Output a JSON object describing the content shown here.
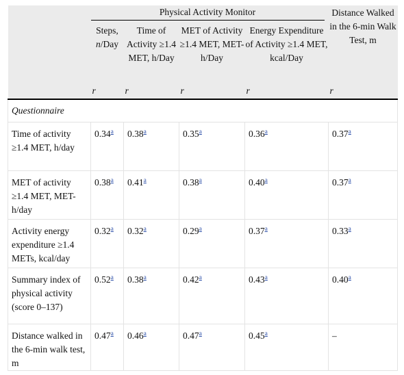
{
  "header": {
    "group_label": "Physical Activity Monitor",
    "distance_label": "Distance Walked in the 6-min Walk Test, m",
    "columns": [
      {
        "pre": "Steps, ",
        "italic": "n",
        "post": "/Day"
      },
      {
        "pre": "Time of Activity ≥1.4 MET, h/Day",
        "italic": "",
        "post": ""
      },
      {
        "pre": "MET of Activity ≥1.4 MET, MET-h/Day",
        "italic": "",
        "post": ""
      },
      {
        "pre": "Energy Expenditure of Activity ≥1.4 MET, kcal/Day",
        "italic": "",
        "post": ""
      }
    ],
    "r_label": "r"
  },
  "section_label": "Questionnaire",
  "footnote_mark": "a",
  "rows": [
    {
      "label": "Time of activity ≥1.4 MET, h/day",
      "values": [
        {
          "v": "0.34",
          "sup": "a"
        },
        {
          "v": "0.38",
          "sup": "a"
        },
        {
          "v": "0.35",
          "sup": "a"
        },
        {
          "v": "0.36",
          "sup": "a"
        },
        {
          "v": "0.37",
          "sup": "a"
        }
      ]
    },
    {
      "label": "MET of activity ≥1.4 MET, MET-h/day",
      "values": [
        {
          "v": "0.38",
          "sup": "a"
        },
        {
          "v": "0.41",
          "sup": "a"
        },
        {
          "v": "0.38",
          "sup": "a"
        },
        {
          "v": "0.40",
          "sup": "a"
        },
        {
          "v": "0.37",
          "sup": "a"
        }
      ]
    },
    {
      "label": "Activity energy expenditure ≥1.4 METs, kcal/day",
      "values": [
        {
          "v": "0.32",
          "sup": "a"
        },
        {
          "v": "0.32",
          "sup": "a"
        },
        {
          "v": "0.29",
          "sup": "a"
        },
        {
          "v": "0.37",
          "sup": "a"
        },
        {
          "v": "0.33",
          "sup": "a"
        }
      ]
    },
    {
      "label": "Summary index of physical activity (score 0–137)",
      "values": [
        {
          "v": "0.52",
          "sup": "a"
        },
        {
          "v": "0.38",
          "sup": "a"
        },
        {
          "v": "0.42",
          "sup": "a"
        },
        {
          "v": "0.43",
          "sup": "a"
        },
        {
          "v": "0.40",
          "sup": "a"
        }
      ]
    },
    {
      "label": "Distance walked in the 6-min walk test, m",
      "values": [
        {
          "v": "0.47",
          "sup": "a"
        },
        {
          "v": "0.46",
          "sup": "a"
        },
        {
          "v": "0.47",
          "sup": "a"
        },
        {
          "v": "0.45",
          "sup": "a"
        },
        {
          "v": "–",
          "sup": ""
        }
      ]
    }
  ]
}
